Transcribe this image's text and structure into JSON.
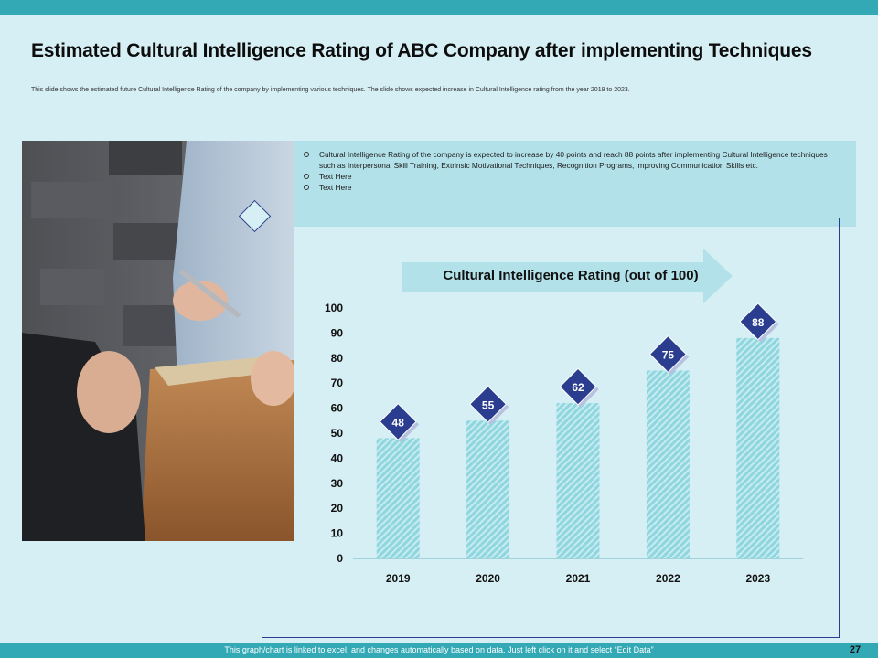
{
  "slide": {
    "title": "Estimated Cultural Intelligence Rating of ABC Company after implementing Techniques",
    "subtitle": "This slide shows the estimated future Cultural Intelligence Rating of the company by implementing various techniques. The slide shows expected increase in Cultural Intelligence rating from the year 2019 to 2023.",
    "bullets": [
      "Cultural Intelligence Rating of the company is expected to increase by 40 points and reach 88 points after implementing Cultural Intelligence techniques such as Interpersonal Skill Training, Extrinsic Motivational Techniques, Recognition Programs, improving Communication Skills etc.",
      "Text Here",
      "Text Here"
    ],
    "footer_note": "This graph/chart is linked to excel, and changes automatically  based on data. Just left click on it and select “Edit Data”",
    "page_number": "27"
  },
  "colors": {
    "top_bar": "#33a9b6",
    "background": "#d6eff4",
    "text_box": "#b3e1e9",
    "bar_fill": "#8fd6df",
    "bar_hatch": "#c6ecf1",
    "label_badge": "#2a3d8f",
    "arrow": "#b3e1e9"
  },
  "chart_data": {
    "type": "bar",
    "title": "Cultural Intelligence Rating (out of 100)",
    "categories": [
      "2019",
      "2020",
      "2021",
      "2022",
      "2023"
    ],
    "values": [
      48,
      55,
      62,
      75,
      88
    ],
    "ylim": [
      0,
      100
    ],
    "yticks": [
      0,
      10,
      20,
      30,
      40,
      50,
      60,
      70,
      80,
      90,
      100
    ],
    "grid": false,
    "data_labels": true
  }
}
